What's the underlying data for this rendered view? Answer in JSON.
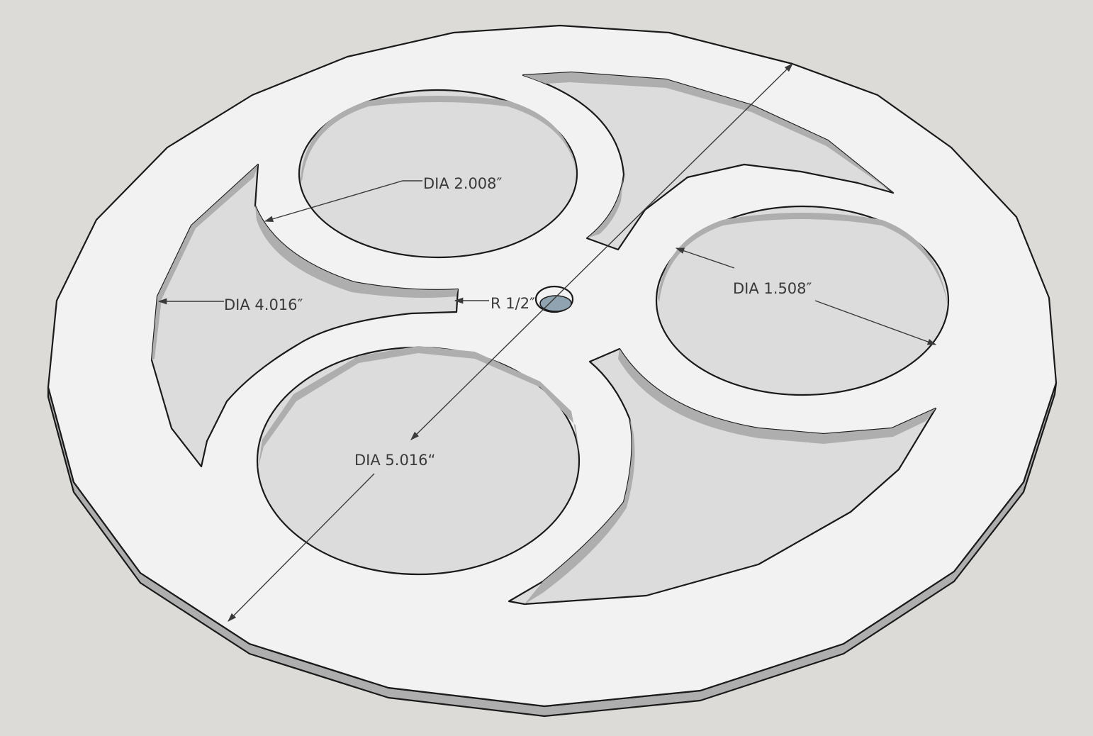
{
  "dimensions": {
    "small_circle": "DIA 2.008″",
    "outer_arc": "DIA 4.016″",
    "radius": "R 1/2″",
    "right_circle": "DIA 1.508″",
    "overall": "DIA 5.016“"
  },
  "colors": {
    "background": "#dcdbd7",
    "plate_face": "#f2f2f2",
    "cutout_floor": "#dcdcdc",
    "edge": "#1a1a1a",
    "dimension": "#3a3a3a"
  }
}
